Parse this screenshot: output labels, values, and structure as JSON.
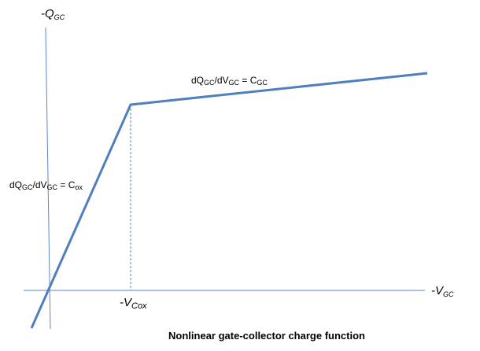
{
  "axes": {
    "y_label": {
      "main": "-Q",
      "sub": "GC"
    },
    "x_label": {
      "main": "-V",
      "sub": "GC"
    },
    "axis_color": "#5b86c5"
  },
  "curve": {
    "color": "#4f7fbf",
    "segments": [
      {
        "name": "oxide-region",
        "slope_label": {
          "num": "dQ",
          "num_sub": "GC",
          "den": "/dV",
          "den_sub": "GC",
          "eq": " = C",
          "eq_sub": "ox"
        }
      },
      {
        "name": "depletion-region",
        "slope_label": {
          "num": "dQ",
          "num_sub": "GC",
          "den": "/dV",
          "den_sub": "GC",
          "eq": " = C",
          "eq_sub": "GC"
        }
      }
    ]
  },
  "breakpoint": {
    "label": {
      "main": "-V",
      "sub": "Cox"
    }
  },
  "caption": "Nonlinear gate-collector charge function"
}
